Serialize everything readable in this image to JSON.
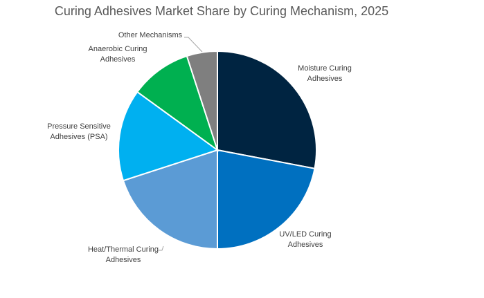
{
  "chart_data": {
    "type": "pie",
    "title": "Curing Adhesives Market Share by Curing Mechanism, 2025",
    "unit": "percent (estimated)",
    "slices": [
      {
        "label": [
          "Moisture Curing",
          "Adhesives"
        ],
        "value": 28,
        "color": "#002441"
      },
      {
        "label": [
          "UV/LED Curing",
          "Adhesives"
        ],
        "value": 22,
        "color": "#0070C0"
      },
      {
        "label": [
          "Heat/Thermal Curing",
          "Adhesives"
        ],
        "value": 20,
        "color": "#5B9BD5"
      },
      {
        "label": [
          "Pressure Sensitive",
          "Adhesives (PSA)"
        ],
        "value": 15,
        "color": "#00B0F0"
      },
      {
        "label": [
          "Anaerobic Curing",
          "Adhesives"
        ],
        "value": 10,
        "color": "#00B050"
      },
      {
        "label": [
          "Other Mechanisms"
        ],
        "value": 5,
        "color": "#7F7F7F"
      }
    ],
    "legend": "none",
    "data_labels": "category names"
  }
}
